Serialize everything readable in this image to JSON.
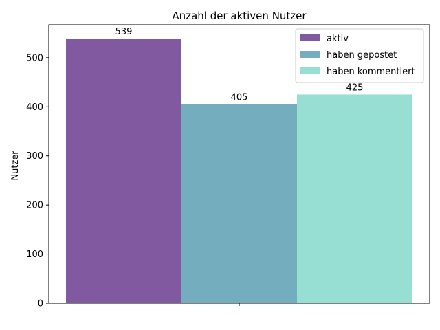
{
  "chart_data": {
    "type": "bar",
    "title": "Anzahl der aktiven Nutzer",
    "ylabel": "Nutzer",
    "xlabel": "",
    "categories": [
      ""
    ],
    "ylim": [
      0,
      567
    ],
    "yticks": [
      0,
      100,
      200,
      300,
      400,
      500
    ],
    "grid": false,
    "legend_position": "top-right",
    "series": [
      {
        "name": "aktiv",
        "values": [
          539
        ],
        "color": "#8059a0",
        "label": "539"
      },
      {
        "name": "haben gepostet",
        "values": [
          405
        ],
        "color": "#73adbe",
        "label": "405"
      },
      {
        "name": "haben kommentiert",
        "values": [
          425
        ],
        "color": "#97dfd3",
        "label": "425"
      }
    ]
  }
}
